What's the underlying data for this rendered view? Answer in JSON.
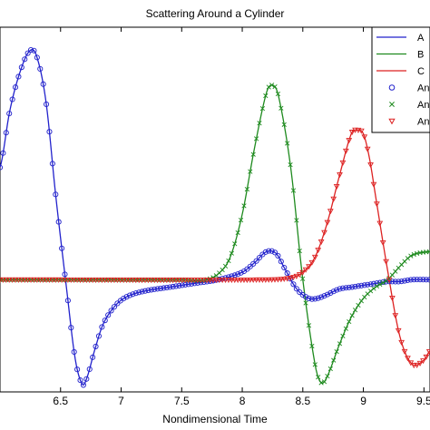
{
  "chart_data": {
    "type": "line",
    "title": "Scattering Around a Cylinder",
    "xlabel": "Nondimensional Time",
    "ylabel": "",
    "xlim": [
      6.0,
      9.55
    ],
    "ylim": [
      -0.6,
      1.35
    ],
    "xticks": [
      "6.5",
      "7",
      "7.5",
      "8",
      "8.5",
      "9",
      "9.5"
    ],
    "xtick_values": [
      6.5,
      7.0,
      7.5,
      8.0,
      8.5,
      9.0,
      9.5
    ],
    "grid": false,
    "legend_position": "top-right",
    "legend": {
      "entries": [
        "A",
        "B",
        "C",
        "An",
        "An",
        "An"
      ]
    },
    "series": [
      {
        "name": "A",
        "style": "line",
        "color": "#2222cc",
        "x": [
          6.0,
          6.08,
          6.16,
          6.24,
          6.3,
          6.38,
          6.46,
          6.55,
          6.62,
          6.68,
          6.72,
          6.78,
          6.85,
          6.95,
          7.05,
          7.2,
          7.4,
          7.6,
          7.8,
          8.0,
          8.1,
          8.2,
          8.28,
          8.35,
          8.45,
          8.55,
          8.62,
          8.7,
          8.8,
          8.9,
          9.0,
          9.1,
          9.2,
          9.3,
          9.4,
          9.55
        ],
        "y": [
          0.6,
          0.9,
          1.1,
          1.22,
          1.2,
          0.95,
          0.45,
          -0.05,
          -0.42,
          -0.56,
          -0.52,
          -0.38,
          -0.24,
          -0.14,
          -0.09,
          -0.06,
          -0.04,
          -0.02,
          0.0,
          0.04,
          0.09,
          0.15,
          0.14,
          0.06,
          -0.05,
          -0.1,
          -0.1,
          -0.08,
          -0.05,
          -0.04,
          -0.03,
          -0.02,
          -0.01,
          -0.01,
          0.0,
          0.0
        ]
      },
      {
        "name": "B",
        "style": "line",
        "color": "#1e8a1e",
        "x": [
          6.0,
          7.5,
          7.7,
          7.8,
          7.9,
          8.0,
          8.1,
          8.2,
          8.25,
          8.3,
          8.4,
          8.5,
          8.6,
          8.65,
          8.7,
          8.8,
          8.9,
          9.0,
          9.1,
          9.2,
          9.3,
          9.4,
          9.55
        ],
        "y": [
          0.0,
          0.0,
          0.0,
          0.03,
          0.12,
          0.35,
          0.7,
          1.0,
          1.04,
          0.98,
          0.6,
          0.0,
          -0.45,
          -0.55,
          -0.52,
          -0.35,
          -0.2,
          -0.1,
          -0.04,
          0.0,
          0.07,
          0.13,
          0.15
        ]
      },
      {
        "name": "C",
        "style": "line",
        "color": "#dd2222",
        "x": [
          6.0,
          8.2,
          8.4,
          8.5,
          8.6,
          8.7,
          8.8,
          8.9,
          8.95,
          9.0,
          9.05,
          9.1,
          9.2,
          9.3,
          9.4,
          9.5,
          9.55
        ],
        "y": [
          0.0,
          0.0,
          0.01,
          0.04,
          0.12,
          0.3,
          0.55,
          0.78,
          0.8,
          0.78,
          0.65,
          0.45,
          0.05,
          -0.3,
          -0.45,
          -0.43,
          -0.38
        ]
      },
      {
        "name": "An",
        "style": "marker",
        "marker": "circle",
        "color": "#2222cc",
        "follows": "A"
      },
      {
        "name": "An",
        "style": "marker",
        "marker": "x",
        "color": "#1e8a1e",
        "follows": "B"
      },
      {
        "name": "An",
        "style": "marker",
        "marker": "triangle-down",
        "color": "#dd2222",
        "follows": "C"
      }
    ]
  }
}
